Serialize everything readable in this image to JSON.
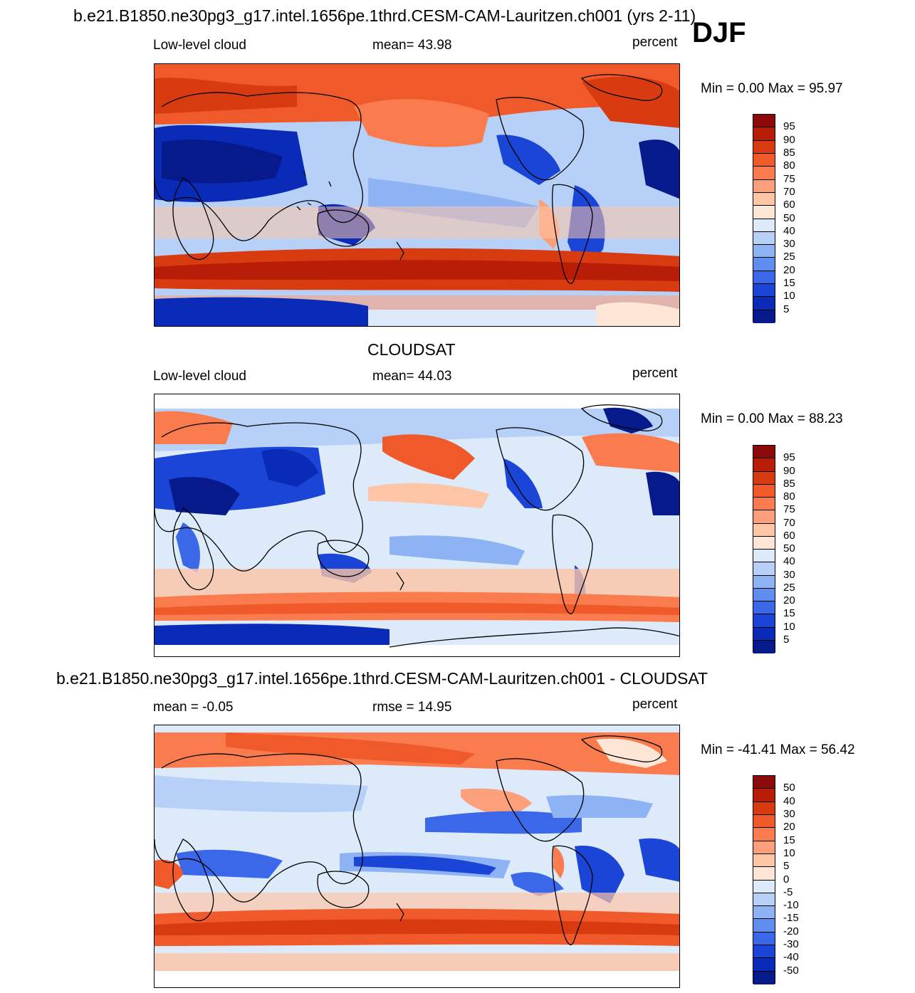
{
  "header": {
    "title": "b.e21.B1850.ne30pg3_g17.intel.1656pe.1thrd.CESM-CAM-Lauritzen.ch001 (yrs 2-11)",
    "season": "DJF"
  },
  "panels": [
    {
      "title": "",
      "left_label": "Low-level cloud",
      "center_label": "mean=  43.98",
      "right_label": "percent",
      "minmax": "Min =    0.00 Max =  95.97",
      "colorbar": {
        "labels": [
          "95",
          "90",
          "85",
          "80",
          "75",
          "70",
          "60",
          "50",
          "40",
          "30",
          "25",
          "20",
          "15",
          "10",
          "5"
        ],
        "colors": [
          "#8c0a0a",
          "#b81d07",
          "#d93b10",
          "#f05a2a",
          "#f97b4e",
          "#fca07b",
          "#fdc4a6",
          "#fde6d6",
          "#dceafa",
          "#b7d0f7",
          "#8db3f4",
          "#5f8ef0",
          "#3a68e8",
          "#1a45d6",
          "#0a2bb8",
          "#061a8c"
        ]
      }
    },
    {
      "title": "CLOUDSAT",
      "left_label": "Low-level cloud",
      "center_label": "mean=  44.03",
      "right_label": "percent",
      "minmax": "Min =    0.00 Max =  88.23",
      "colorbar": {
        "labels": [
          "95",
          "90",
          "85",
          "80",
          "75",
          "70",
          "60",
          "50",
          "40",
          "30",
          "25",
          "20",
          "15",
          "10",
          "5"
        ],
        "colors": [
          "#8c0a0a",
          "#b81d07",
          "#d93b10",
          "#f05a2a",
          "#f97b4e",
          "#fca07b",
          "#fdc4a6",
          "#fde6d6",
          "#dceafa",
          "#b7d0f7",
          "#8db3f4",
          "#5f8ef0",
          "#3a68e8",
          "#1a45d6",
          "#0a2bb8",
          "#061a8c"
        ]
      }
    },
    {
      "title": "b.e21.B1850.ne30pg3_g17.intel.1656pe.1thrd.CESM-CAM-Lauritzen.ch001 - CLOUDSAT",
      "left_label": "mean =  -0.05",
      "center_label": "rmse =  14.95",
      "right_label": "percent",
      "minmax": "Min = -41.41 Max =  56.42",
      "colorbar": {
        "labels": [
          "50",
          "40",
          "30",
          "20",
          "15",
          "10",
          "5",
          "0",
          "-5",
          "-10",
          "-15",
          "-20",
          "-30",
          "-40",
          "-50"
        ],
        "colors": [
          "#8c0a0a",
          "#b81d07",
          "#d93b10",
          "#f05a2a",
          "#f97b4e",
          "#fca07b",
          "#fdc4a6",
          "#fde6d6",
          "#dceafa",
          "#b7d0f7",
          "#8db3f4",
          "#5f8ef0",
          "#3a68e8",
          "#1a45d6",
          "#0a2bb8",
          "#061a8c"
        ]
      }
    }
  ]
}
